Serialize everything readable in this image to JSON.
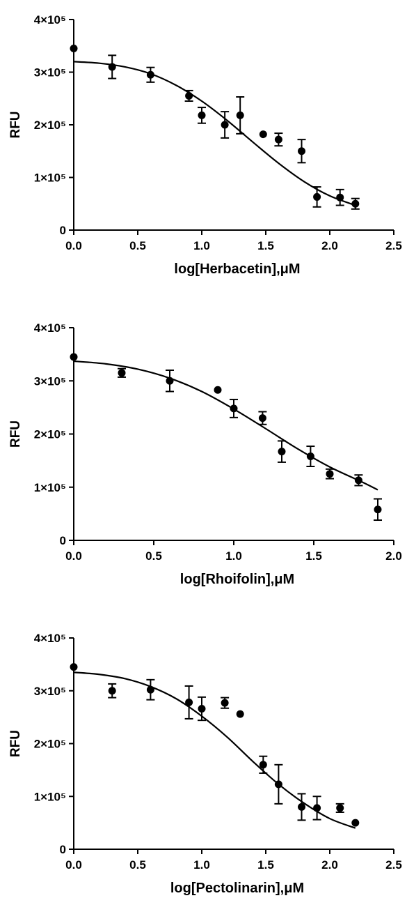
{
  "chart_data": [
    {
      "type": "scatter",
      "xlabel": "log[Herbacetin],μM",
      "ylabel": "RFU",
      "xlim": [
        0,
        2.5
      ],
      "ylim": [
        0,
        400000
      ],
      "xticks": [
        "0.0",
        "0.5",
        "1.0",
        "1.5",
        "2.0",
        "2.5"
      ],
      "yticks": [
        "0",
        "1×10⁵",
        "2×10⁵",
        "3×10⁵",
        "4×10⁵"
      ],
      "points": [
        {
          "x": 0.0,
          "y": 345000,
          "err": 0
        },
        {
          "x": 0.3,
          "y": 310000,
          "err": 22000
        },
        {
          "x": 0.6,
          "y": 295000,
          "err": 14000
        },
        {
          "x": 0.9,
          "y": 255000,
          "err": 10000
        },
        {
          "x": 1.0,
          "y": 218000,
          "err": 15000
        },
        {
          "x": 1.18,
          "y": 200000,
          "err": 25000
        },
        {
          "x": 1.3,
          "y": 218000,
          "err": 35000
        },
        {
          "x": 1.48,
          "y": 182000,
          "err": 0
        },
        {
          "x": 1.6,
          "y": 172000,
          "err": 12000
        },
        {
          "x": 1.78,
          "y": 150000,
          "err": 22000
        },
        {
          "x": 1.9,
          "y": 63000,
          "err": 19000
        },
        {
          "x": 2.08,
          "y": 62000,
          "err": 15000
        },
        {
          "x": 2.2,
          "y": 50000,
          "err": 10000
        }
      ],
      "fit_curve": {
        "x": [
          0,
          0.2,
          0.4,
          0.6,
          0.8,
          1.0,
          1.2,
          1.4,
          1.6,
          1.8,
          2.0,
          2.2
        ],
        "y": [
          320000,
          317000,
          310000,
          297000,
          275000,
          245000,
          208000,
          167000,
          127000,
          92000,
          65000,
          47000
        ]
      }
    },
    {
      "type": "scatter",
      "xlabel": "log[Rhoifolin],μM",
      "ylabel": "RFU",
      "xlim": [
        0,
        2.0
      ],
      "ylim": [
        0,
        400000
      ],
      "xticks": [
        "0.0",
        "0.5",
        "1.0",
        "1.5",
        "2.0"
      ],
      "yticks": [
        "0",
        "1×10⁵",
        "2×10⁵",
        "3×10⁵",
        "4×10⁵"
      ],
      "points": [
        {
          "x": 0.0,
          "y": 345000,
          "err": 0
        },
        {
          "x": 0.3,
          "y": 315000,
          "err": 8000
        },
        {
          "x": 0.6,
          "y": 300000,
          "err": 20000
        },
        {
          "x": 0.9,
          "y": 283000,
          "err": 0
        },
        {
          "x": 1.0,
          "y": 248000,
          "err": 17000
        },
        {
          "x": 1.18,
          "y": 230000,
          "err": 12000
        },
        {
          "x": 1.3,
          "y": 167000,
          "err": 20000
        },
        {
          "x": 1.48,
          "y": 158000,
          "err": 19000
        },
        {
          "x": 1.6,
          "y": 125000,
          "err": 9000
        },
        {
          "x": 1.78,
          "y": 113000,
          "err": 10000
        },
        {
          "x": 1.9,
          "y": 58000,
          "err": 20000
        }
      ],
      "fit_curve": {
        "x": [
          0,
          0.2,
          0.4,
          0.6,
          0.8,
          1.0,
          1.2,
          1.4,
          1.6,
          1.8,
          1.9
        ],
        "y": [
          337000,
          332000,
          322000,
          305000,
          280000,
          247000,
          210000,
          172000,
          138000,
          110000,
          95000
        ]
      }
    },
    {
      "type": "scatter",
      "xlabel": "log[Pectolinarin],μM",
      "ylabel": "RFU",
      "xlim": [
        0,
        2.5
      ],
      "ylim": [
        0,
        400000
      ],
      "xticks": [
        "0.0",
        "0.5",
        "1.0",
        "1.5",
        "2.0",
        "2.5"
      ],
      "yticks": [
        "0",
        "1×10⁵",
        "2×10⁵",
        "3×10⁵",
        "4×10⁵"
      ],
      "points": [
        {
          "x": 0.0,
          "y": 345000,
          "err": 0
        },
        {
          "x": 0.3,
          "y": 300000,
          "err": 13000
        },
        {
          "x": 0.6,
          "y": 302000,
          "err": 19000
        },
        {
          "x": 0.9,
          "y": 278000,
          "err": 31000
        },
        {
          "x": 1.0,
          "y": 266000,
          "err": 22000
        },
        {
          "x": 1.18,
          "y": 277000,
          "err": 10000
        },
        {
          "x": 1.3,
          "y": 256000,
          "err": 0
        },
        {
          "x": 1.48,
          "y": 160000,
          "err": 16000
        },
        {
          "x": 1.6,
          "y": 123000,
          "err": 37000
        },
        {
          "x": 1.78,
          "y": 80000,
          "err": 25000
        },
        {
          "x": 1.9,
          "y": 78000,
          "err": 22000
        },
        {
          "x": 2.08,
          "y": 78000,
          "err": 8000
        },
        {
          "x": 2.2,
          "y": 50000,
          "err": 0
        }
      ],
      "fit_curve": {
        "x": [
          0,
          0.2,
          0.4,
          0.6,
          0.8,
          1.0,
          1.2,
          1.4,
          1.6,
          1.8,
          2.0,
          2.2
        ],
        "y": [
          335000,
          331000,
          323000,
          308000,
          285000,
          252000,
          212000,
          166000,
          123000,
          87000,
          58000,
          40000
        ]
      }
    }
  ]
}
